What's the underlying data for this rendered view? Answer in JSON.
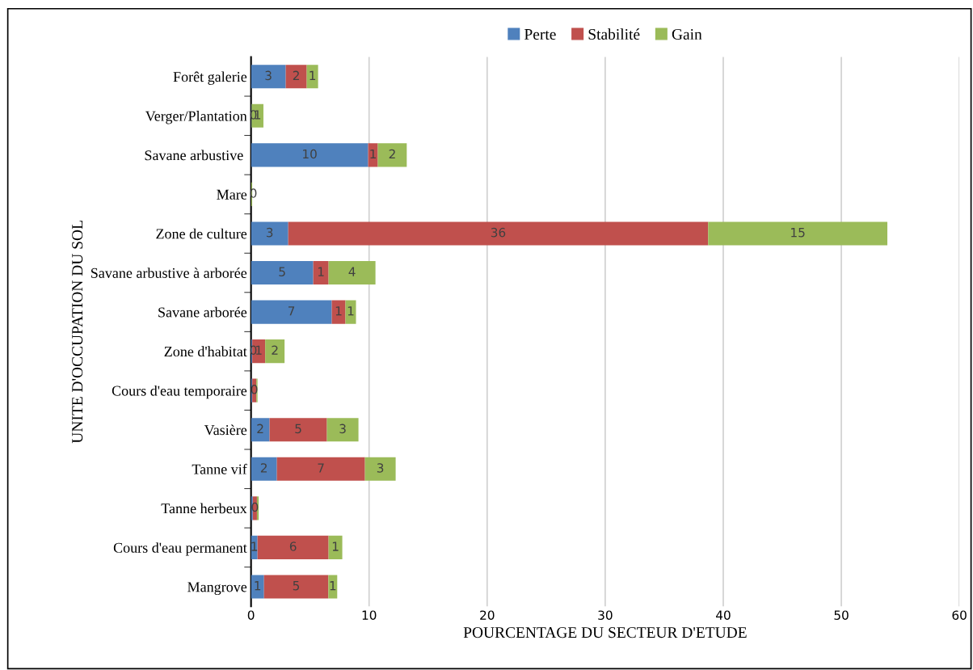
{
  "chart_data": {
    "type": "bar",
    "orientation": "horizontal",
    "stacked": true,
    "xlabel": "POURCENTAGE DU SECTEUR D'ETUDE",
    "ylabel": "UNITE D'OCCUPATION DU SOL",
    "categories": [
      "Forêt galerie",
      "Verger/Plantation",
      "Savane arbustive ",
      "Mare",
      "Zone de culture",
      "Savane arbustive à arborée",
      "Savane arborée",
      "Zone d'habitat",
      "Cours d'eau temporaire",
      "Vasière",
      "Tanne vif",
      "Tanne herbeux",
      "Cours d'eau permanent",
      "Mangrove"
    ],
    "series": [
      {
        "name": "Perte",
        "color": "#4f81bd",
        "values": [
          2.94,
          0.05,
          9.92,
          0,
          3.15,
          5.27,
          6.84,
          0.1,
          0.1,
          1.57,
          2.19,
          0.15,
          0.55,
          1.1
        ],
        "value_labels": [
          "3",
          "0",
          "10",
          null,
          "3",
          "5",
          "7",
          "0",
          null,
          "2",
          "2",
          null,
          "1",
          "1"
        ]
      },
      {
        "name": "Stabilité",
        "color": "#c0504d",
        "values": [
          1.78,
          0,
          0.82,
          0,
          35.57,
          1.3,
          1.16,
          1.1,
          0.35,
          4.86,
          7.46,
          0.35,
          6.02,
          5.45
        ],
        "value_labels": [
          "2",
          null,
          "1",
          null,
          "36",
          "1",
          "1",
          "1",
          "0",
          "5",
          "7",
          "0",
          "6",
          "5"
        ]
      },
      {
        "name": "Gain",
        "color": "#9bbb59",
        "values": [
          0.96,
          1.0,
          2.45,
          0.1,
          15.18,
          3.97,
          0.89,
          1.64,
          0.1,
          2.67,
          2.6,
          0.15,
          1.16,
          0.75
        ],
        "value_labels": [
          "1",
          "1",
          "2",
          "0",
          "15",
          "4",
          "1",
          "2",
          null,
          "3",
          "3",
          null,
          "1",
          "1"
        ]
      }
    ],
    "xlim": [
      0,
      60
    ],
    "xticks": [
      0,
      10,
      20,
      30,
      40,
      50,
      60
    ],
    "grid": "x",
    "legend": "top"
  }
}
